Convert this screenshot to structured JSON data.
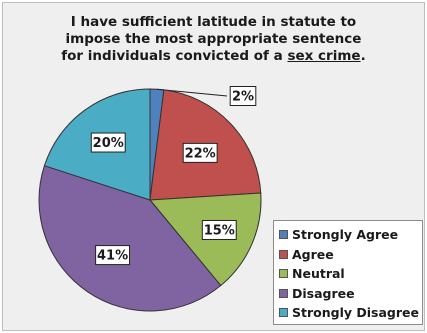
{
  "chart_data": {
    "type": "pie",
    "title_lines": [
      "I have sufficient latitude in statute to",
      "impose the most appropriate sentence",
      "for individuals convicted of a "
    ],
    "title_underlined": "sex crime",
    "title_end": ".",
    "categories": [
      "Strongly Agree",
      "Agree",
      "Neutral",
      "Disagree",
      "Strongly Disagree"
    ],
    "values": [
      2,
      22,
      15,
      41,
      20
    ],
    "data_labels": [
      "2%",
      "22%",
      "15%",
      "41%",
      "20%"
    ],
    "colors": [
      "#4f81bd",
      "#c0504d",
      "#9bbb59",
      "#8064a2",
      "#4bacc6"
    ],
    "legend_position": "bottom-right"
  }
}
